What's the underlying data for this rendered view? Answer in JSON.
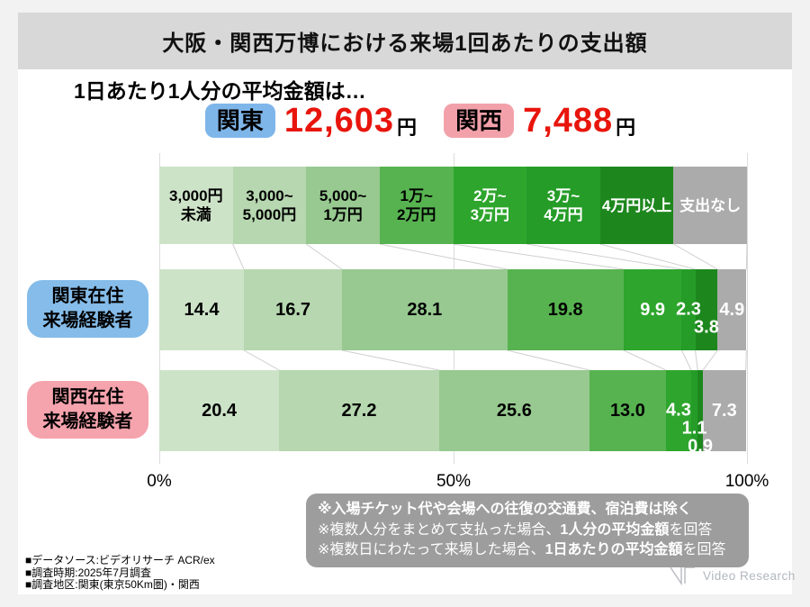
{
  "page": {
    "title": "大阪・関西万博における来場1回あたりの支出額",
    "subtitle": "1日あたり1人分の平均金額は…"
  },
  "averages": {
    "items": [
      {
        "region": "関東",
        "badge_color": "#7fb6ea",
        "amount": "12,603",
        "unit": "円"
      },
      {
        "region": "関西",
        "badge_color": "#f2a1aa",
        "amount": "7,488",
        "unit": "円"
      }
    ],
    "amount_color": "#e8150c"
  },
  "chart_data": {
    "type": "bar",
    "stacked": true,
    "orientation": "horizontal",
    "unit": "%",
    "title": "大阪・関西万博における来場1回あたりの支出額",
    "categories": [
      "3,000円未満",
      "3,000~5,000円",
      "5,000~1万円",
      "1万~2万円",
      "2万~3万円",
      "3万~4万円",
      "4万円以上",
      "支出なし"
    ],
    "category_lines": [
      [
        "3,000円",
        "未満"
      ],
      [
        "3,000~",
        "5,000円"
      ],
      [
        "5,000~",
        "1万円"
      ],
      [
        "1万~",
        "2万円"
      ],
      [
        "2万~",
        "3万円"
      ],
      [
        "3万~",
        "4万円"
      ],
      [
        "4万円以上"
      ],
      [
        "支出なし"
      ]
    ],
    "category_colors": [
      "#cde3c8",
      "#b6d7af",
      "#97c990",
      "#57b350",
      "#2ea52d",
      "#259c28",
      "#1d871d",
      "#ababab"
    ],
    "category_text_colors": [
      "#000000",
      "#000000",
      "#000000",
      "#000000",
      "#ffffff",
      "#ffffff",
      "#ffffff",
      "#ffffff"
    ],
    "series": [
      {
        "name_lines": [
          "関東在住",
          "来場経験者"
        ],
        "label_bg": "#85bce9",
        "values": [
          14.4,
          16.7,
          28.1,
          19.8,
          9.9,
          2.3,
          3.8,
          4.9
        ]
      },
      {
        "name_lines": [
          "関西在住",
          "来場経験者"
        ],
        "label_bg": "#f5a3ad",
        "values": [
          20.4,
          27.2,
          25.6,
          13.0,
          4.3,
          1.1,
          0.9,
          7.3
        ]
      }
    ],
    "x_ticks": [
      "0%",
      "50%",
      "100%"
    ],
    "xlim": [
      0,
      100
    ],
    "legend_position": "top",
    "grid": true
  },
  "notes": {
    "bg_color": "#9d9d9d",
    "lines": [
      {
        "segments": [
          {
            "text": "※入場チケット代や会場への往復の交通費、宿泊費は除く",
            "bold": true
          }
        ]
      },
      {
        "segments": [
          {
            "text": "※複数人分をまとめて支払った場合、",
            "bold": false
          },
          {
            "text": "1人分の平均金額",
            "bold": true
          },
          {
            "text": "を回答",
            "bold": false
          }
        ]
      },
      {
        "segments": [
          {
            "text": "※複数日にわたって来場した場合、",
            "bold": false
          },
          {
            "text": "1日あたりの平均金額",
            "bold": true
          },
          {
            "text": "を回答",
            "bold": false
          }
        ]
      }
    ]
  },
  "footer": {
    "lines": [
      "■データソース:ビデオリサーチ ACR/ex",
      "■調査時期:2025年7月調査",
      "■調査地区:関東(東京50Km圏)・関西"
    ],
    "logo_text": "Video Research"
  }
}
